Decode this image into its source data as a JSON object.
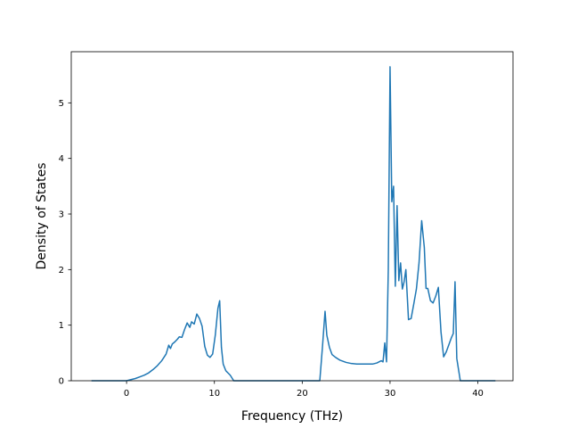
{
  "chart_data": {
    "type": "line",
    "title": "",
    "xlabel": "Frequency (THz)",
    "ylabel": "Density of States",
    "xlim": [
      -6.3,
      44.0
    ],
    "ylim": [
      0,
      5.92
    ],
    "x_ticks": [
      0,
      10,
      20,
      30,
      40
    ],
    "y_ticks": [
      0,
      1,
      2,
      3,
      4,
      5
    ],
    "grid": false,
    "legend": "none",
    "line_color": "#1f77b4",
    "series": [
      {
        "x": [
          -4.0,
          -2.0,
          0.0,
          0.5,
          1.0,
          1.5,
          2.0,
          2.5,
          3.0,
          3.5,
          4.0,
          4.5,
          4.8,
          5.0,
          5.2,
          5.5,
          5.8,
          6.0,
          6.3,
          6.6,
          6.9,
          7.2,
          7.4,
          7.7,
          8.0,
          8.3,
          8.6,
          8.9,
          9.2,
          9.5,
          9.8,
          10.1,
          10.4,
          10.6,
          10.8,
          11.0,
          11.3,
          11.8,
          12.2,
          13.0,
          15.0,
          18.0,
          22.0,
          22.3,
          22.6,
          22.8,
          23.1,
          23.4,
          23.8,
          24.3,
          25.0,
          25.6,
          26.2,
          27.0,
          28.0,
          28.5,
          29.0,
          29.2,
          29.4,
          29.6,
          29.8,
          30.0,
          30.2,
          30.4,
          30.6,
          30.8,
          31.0,
          31.2,
          31.4,
          31.6,
          31.8,
          32.1,
          32.4,
          32.7,
          33.0,
          33.3,
          33.6,
          33.9,
          34.1,
          34.3,
          34.6,
          34.9,
          35.2,
          35.5,
          35.8,
          36.1,
          36.4,
          36.7,
          37.0,
          37.2,
          37.4,
          37.6,
          37.8,
          38.0,
          38.2,
          39.0,
          40.0,
          42.0
        ],
        "y": [
          0,
          0,
          0,
          0.02,
          0.04,
          0.07,
          0.1,
          0.14,
          0.2,
          0.27,
          0.36,
          0.48,
          0.64,
          0.58,
          0.66,
          0.7,
          0.75,
          0.79,
          0.78,
          0.92,
          1.04,
          0.96,
          1.06,
          1.02,
          1.2,
          1.12,
          0.98,
          0.62,
          0.46,
          0.42,
          0.48,
          0.82,
          1.3,
          1.44,
          0.6,
          0.3,
          0.18,
          0.1,
          0,
          0,
          0,
          0,
          0,
          0.6,
          1.25,
          0.82,
          0.6,
          0.47,
          0.42,
          0.37,
          0.33,
          0.31,
          0.3,
          0.3,
          0.3,
          0.32,
          0.36,
          0.34,
          0.68,
          0.34,
          2.0,
          5.65,
          3.22,
          3.5,
          1.7,
          3.15,
          1.8,
          2.12,
          1.65,
          1.78,
          2.0,
          1.1,
          1.12,
          1.38,
          1.65,
          2.12,
          2.88,
          2.4,
          1.66,
          1.66,
          1.44,
          1.4,
          1.52,
          1.68,
          0.88,
          0.43,
          0.52,
          0.65,
          0.78,
          0.85,
          1.78,
          0.4,
          0.2,
          0,
          0,
          0,
          0,
          0
        ]
      }
    ]
  }
}
